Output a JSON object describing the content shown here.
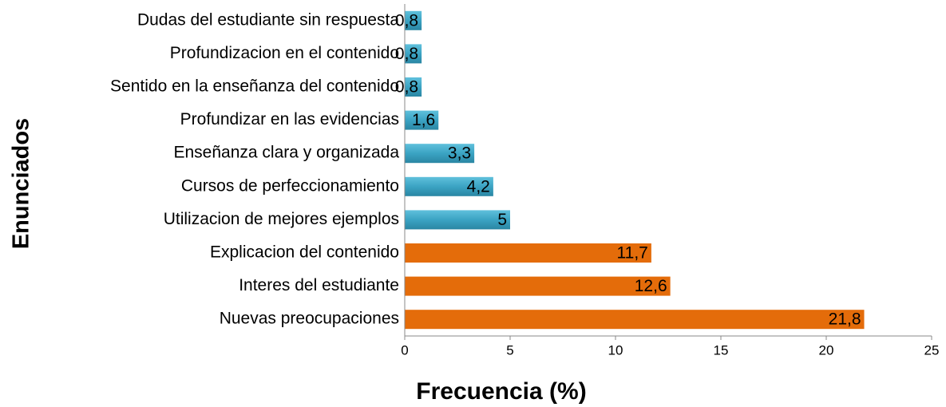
{
  "chart_data": {
    "type": "hbar",
    "x_label": "Frecuencia (%)",
    "y_label": "Enunciados",
    "categories": [
      "Dudas del estudiante sin respuesta",
      "Profundizacion en el contenido",
      "Sentido en la enseñanza del contenido",
      "Profundizar en las evidencias",
      "Enseñanza clara y organizada",
      "Cursos de perfeccionamiento",
      "Utilizacion de mejores ejemplos",
      "Explicacion del contenido",
      "Interes del estudiante",
      "Nuevas preocupaciones"
    ],
    "values": [
      0.8,
      0.8,
      0.8,
      1.6,
      3.3,
      4.2,
      5,
      11.7,
      12.6,
      21.8
    ],
    "value_labels": [
      "0,8",
      "0,8",
      "0,8",
      "1,6",
      "3,3",
      "4,2",
      "5",
      "11,7",
      "12,6",
      "21,8"
    ],
    "colors": [
      "#3ba3c3",
      "#3ba3c3",
      "#3ba3c3",
      "#3ba3c3",
      "#3ba3c3",
      "#3ba3c3",
      "#3ba3c3",
      "#e46c0a",
      "#e46c0a",
      "#e46c0a"
    ],
    "xlim": [
      0,
      25
    ],
    "xticks": [
      0,
      5,
      10,
      15,
      20,
      25
    ],
    "grid": false
  }
}
